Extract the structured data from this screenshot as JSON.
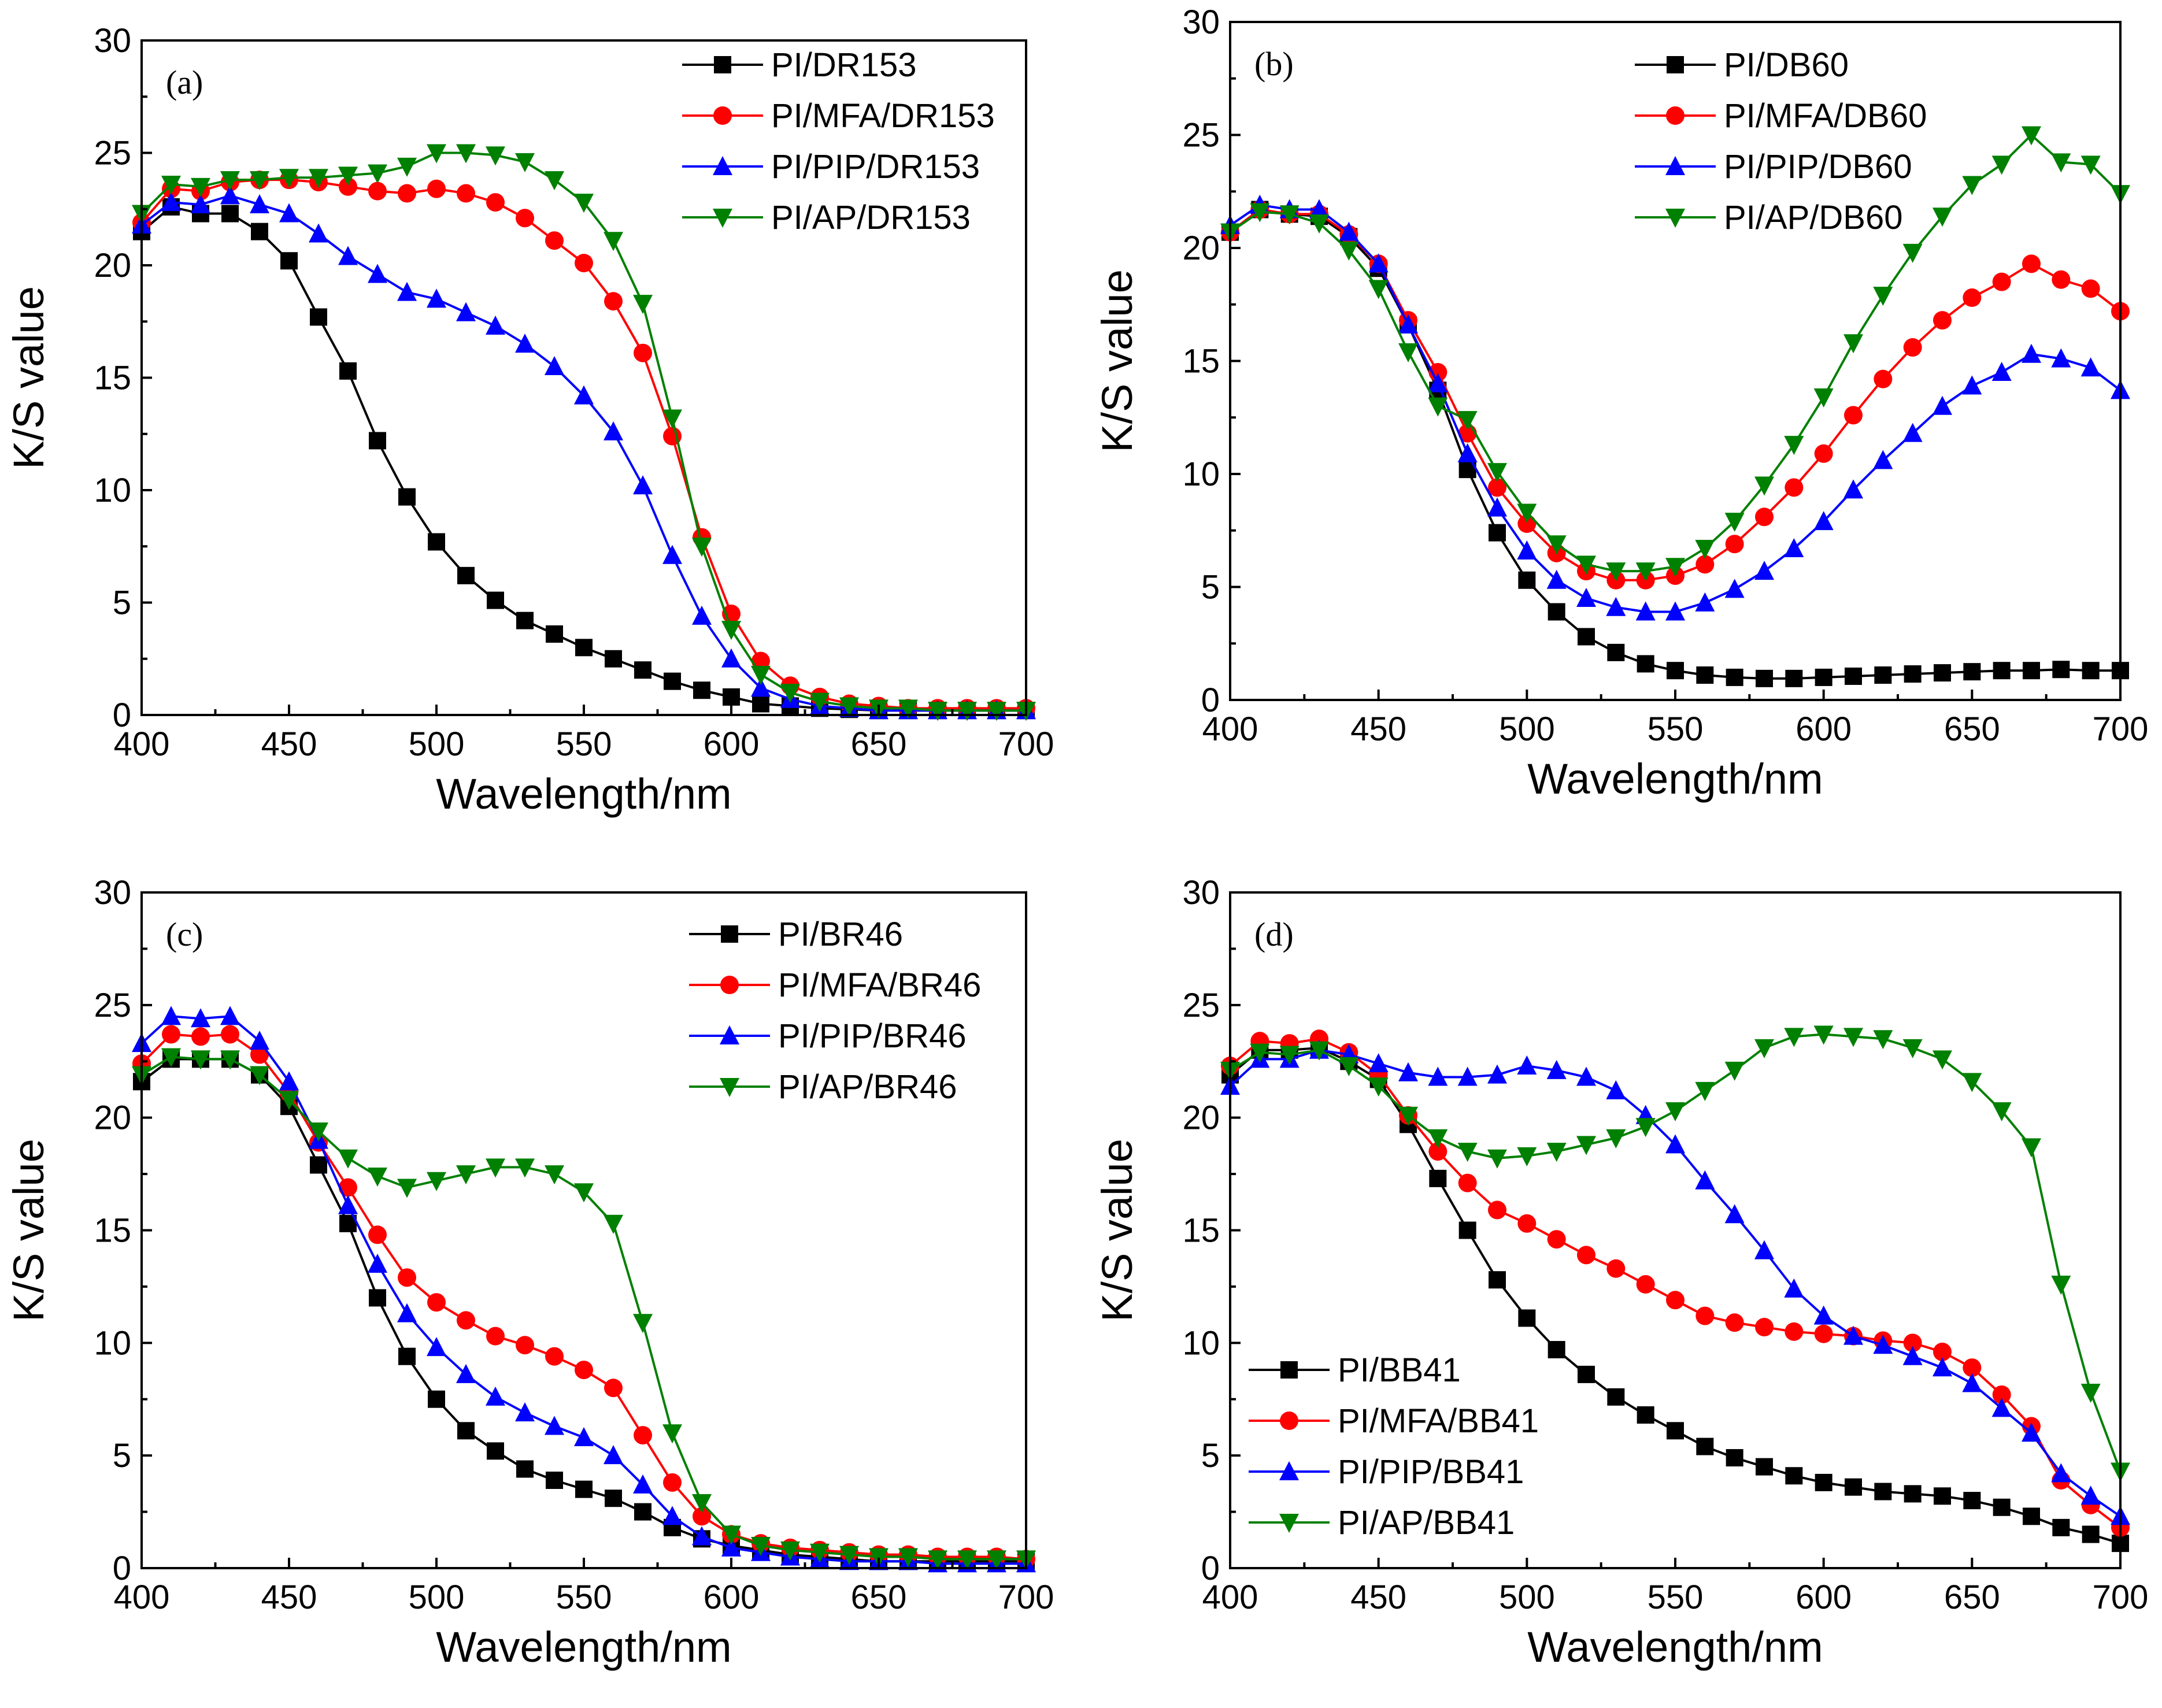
{
  "chart_data": [
    {
      "type": "line",
      "panel_label": "(a)",
      "xlabel": "Wavelength/nm",
      "ylabel": "K/S value",
      "xlim": [
        400,
        700
      ],
      "ylim": [
        0,
        30
      ],
      "xticks": [
        400,
        450,
        500,
        550,
        600,
        650,
        700
      ],
      "yticks": [
        0,
        5,
        10,
        15,
        20,
        25,
        30
      ],
      "legend_position": "top-right",
      "x": [
        400,
        410,
        420,
        430,
        440,
        450,
        460,
        470,
        480,
        490,
        500,
        510,
        520,
        530,
        540,
        550,
        560,
        570,
        580,
        590,
        600,
        610,
        620,
        630,
        640,
        650,
        660,
        670,
        680,
        690,
        700
      ],
      "series": [
        {
          "name": "PI/DR153",
          "color": "#000000",
          "marker": "square",
          "values": [
            21.5,
            22.6,
            22.3,
            22.3,
            21.5,
            20.2,
            17.7,
            15.3,
            12.2,
            9.7,
            7.7,
            6.2,
            5.1,
            4.2,
            3.6,
            3.0,
            2.5,
            2.0,
            1.5,
            1.1,
            0.8,
            0.5,
            0.4,
            0.3,
            0.25,
            0.2,
            0.2,
            0.2,
            0.2,
            0.2,
            0.2
          ]
        },
        {
          "name": "PI/MFA/DR153",
          "color": "#ff0000",
          "marker": "circle",
          "values": [
            21.9,
            23.4,
            23.3,
            23.7,
            23.8,
            23.8,
            23.7,
            23.5,
            23.3,
            23.2,
            23.4,
            23.2,
            22.8,
            22.1,
            21.1,
            20.1,
            18.4,
            16.1,
            12.4,
            7.9,
            4.5,
            2.4,
            1.3,
            0.8,
            0.5,
            0.4,
            0.3,
            0.3,
            0.3,
            0.3,
            0.3
          ]
        },
        {
          "name": "PI/PIP/DR153",
          "color": "#0000ff",
          "marker": "triangle-up",
          "values": [
            21.8,
            22.8,
            22.7,
            23.1,
            22.7,
            22.3,
            21.4,
            20.4,
            19.6,
            18.8,
            18.5,
            17.9,
            17.3,
            16.5,
            15.5,
            14.2,
            12.6,
            10.2,
            7.1,
            4.4,
            2.5,
            1.2,
            0.7,
            0.4,
            0.3,
            0.2,
            0.2,
            0.2,
            0.2,
            0.2,
            0.2
          ]
        },
        {
          "name": "PI/AP/DR153",
          "color": "#008000",
          "marker": "triangle-down",
          "values": [
            22.3,
            23.6,
            23.5,
            23.8,
            23.8,
            23.9,
            23.9,
            24.0,
            24.1,
            24.4,
            25.0,
            25.0,
            24.9,
            24.6,
            23.8,
            22.8,
            21.1,
            18.3,
            13.2,
            7.5,
            3.8,
            1.8,
            1.0,
            0.6,
            0.4,
            0.3,
            0.3,
            0.2,
            0.2,
            0.2,
            0.2
          ]
        }
      ]
    },
    {
      "type": "line",
      "panel_label": "(b)",
      "xlabel": "Wavelength/nm",
      "ylabel": "K/S value",
      "xlim": [
        400,
        700
      ],
      "ylim": [
        0,
        30
      ],
      "xticks": [
        400,
        450,
        500,
        550,
        600,
        650,
        700
      ],
      "yticks": [
        0,
        5,
        10,
        15,
        20,
        25,
        30
      ],
      "legend_position": "top-center",
      "x": [
        400,
        410,
        420,
        430,
        440,
        450,
        460,
        470,
        480,
        490,
        500,
        510,
        520,
        530,
        540,
        550,
        560,
        570,
        580,
        590,
        600,
        610,
        620,
        630,
        640,
        650,
        660,
        670,
        680,
        690,
        700
      ],
      "series": [
        {
          "name": "PI/DB60",
          "color": "#000000",
          "marker": "square",
          "values": [
            20.7,
            21.7,
            21.5,
            21.4,
            20.5,
            19.1,
            16.6,
            13.7,
            10.2,
            7.4,
            5.3,
            3.9,
            2.8,
            2.1,
            1.6,
            1.3,
            1.1,
            1.0,
            0.95,
            0.95,
            1.0,
            1.05,
            1.1,
            1.15,
            1.2,
            1.25,
            1.3,
            1.3,
            1.35,
            1.3,
            1.3
          ]
        },
        {
          "name": "PI/MFA/DB60",
          "color": "#ff0000",
          "marker": "circle",
          "values": [
            20.7,
            21.7,
            21.5,
            21.5,
            20.6,
            19.3,
            16.8,
            14.5,
            11.8,
            9.4,
            7.8,
            6.5,
            5.7,
            5.3,
            5.3,
            5.5,
            6.0,
            6.9,
            8.1,
            9.4,
            10.9,
            12.6,
            14.2,
            15.6,
            16.8,
            17.8,
            18.5,
            19.3,
            18.6,
            18.2,
            17.2
          ]
        },
        {
          "name": "PI/PIP/DB60",
          "color": "#0000ff",
          "marker": "triangle-up",
          "values": [
            21.0,
            21.9,
            21.7,
            21.7,
            20.7,
            19.3,
            16.6,
            14.0,
            10.9,
            8.5,
            6.6,
            5.3,
            4.5,
            4.1,
            3.9,
            3.9,
            4.3,
            4.9,
            5.7,
            6.7,
            7.9,
            9.3,
            10.6,
            11.8,
            13.0,
            13.9,
            14.5,
            15.3,
            15.1,
            14.7,
            13.7
          ]
        },
        {
          "name": "PI/AP/DB60",
          "color": "#008000",
          "marker": "triangle-down",
          "values": [
            20.7,
            21.6,
            21.5,
            21.1,
            19.9,
            18.2,
            15.4,
            13.0,
            12.4,
            10.1,
            8.3,
            6.9,
            6.0,
            5.7,
            5.7,
            5.9,
            6.7,
            7.9,
            9.5,
            11.3,
            13.4,
            15.8,
            17.9,
            19.8,
            21.4,
            22.8,
            23.7,
            25.0,
            23.8,
            23.7,
            22.4
          ]
        }
      ]
    },
    {
      "type": "line",
      "panel_label": "(c)",
      "xlabel": "Wavelength/nm",
      "ylabel": "K/S value",
      "xlim": [
        400,
        700
      ],
      "ylim": [
        0,
        30
      ],
      "xticks": [
        400,
        450,
        500,
        550,
        600,
        650,
        700
      ],
      "yticks": [
        0,
        5,
        10,
        15,
        20,
        25,
        30
      ],
      "legend_position": "top-right",
      "x": [
        400,
        410,
        420,
        430,
        440,
        450,
        460,
        470,
        480,
        490,
        500,
        510,
        520,
        530,
        540,
        550,
        560,
        570,
        580,
        590,
        600,
        610,
        620,
        630,
        640,
        650,
        660,
        670,
        680,
        690,
        700
      ],
      "series": [
        {
          "name": "PI/BR46",
          "color": "#000000",
          "marker": "square",
          "values": [
            21.6,
            22.6,
            22.6,
            22.6,
            21.9,
            20.5,
            17.9,
            15.3,
            12.0,
            9.4,
            7.5,
            6.1,
            5.2,
            4.4,
            3.9,
            3.5,
            3.1,
            2.5,
            1.8,
            1.3,
            1.0,
            0.8,
            0.6,
            0.5,
            0.4,
            0.3,
            0.3,
            0.3,
            0.3,
            0.3,
            0.3
          ]
        },
        {
          "name": "PI/MFA/BR46",
          "color": "#ff0000",
          "marker": "circle",
          "values": [
            22.4,
            23.7,
            23.6,
            23.7,
            22.8,
            21.1,
            18.9,
            16.9,
            14.8,
            12.9,
            11.8,
            11.0,
            10.3,
            9.9,
            9.4,
            8.8,
            8.0,
            5.9,
            3.8,
            2.3,
            1.5,
            1.1,
            0.9,
            0.8,
            0.7,
            0.6,
            0.6,
            0.5,
            0.5,
            0.5,
            0.4
          ]
        },
        {
          "name": "PI/PIP/BR46",
          "color": "#0000ff",
          "marker": "triangle-up",
          "values": [
            23.3,
            24.5,
            24.4,
            24.5,
            23.4,
            21.6,
            19.0,
            16.1,
            13.5,
            11.3,
            9.8,
            8.6,
            7.6,
            6.9,
            6.3,
            5.8,
            5.0,
            3.7,
            2.3,
            1.4,
            0.9,
            0.7,
            0.5,
            0.4,
            0.3,
            0.3,
            0.3,
            0.2,
            0.2,
            0.2,
            0.2
          ]
        },
        {
          "name": "PI/AP/BR46",
          "color": "#008000",
          "marker": "triangle-down",
          "values": [
            21.9,
            22.7,
            22.6,
            22.6,
            21.9,
            20.8,
            19.4,
            18.2,
            17.4,
            16.9,
            17.2,
            17.5,
            17.8,
            17.8,
            17.5,
            16.7,
            15.3,
            10.9,
            6.0,
            2.9,
            1.5,
            1.0,
            0.8,
            0.7,
            0.6,
            0.5,
            0.5,
            0.4,
            0.4,
            0.4,
            0.4
          ]
        }
      ]
    },
    {
      "type": "line",
      "panel_label": "(d)",
      "xlabel": "Wavelength/nm",
      "ylabel": "K/S value",
      "xlim": [
        400,
        700
      ],
      "ylim": [
        0,
        30
      ],
      "xticks": [
        400,
        450,
        500,
        550,
        600,
        650,
        700
      ],
      "yticks": [
        0,
        5,
        10,
        15,
        20,
        25,
        30
      ],
      "legend_position": "bottom-left",
      "x": [
        400,
        410,
        420,
        430,
        440,
        450,
        460,
        470,
        480,
        490,
        500,
        510,
        520,
        530,
        540,
        550,
        560,
        570,
        580,
        590,
        600,
        610,
        620,
        630,
        640,
        650,
        660,
        670,
        680,
        690,
        700
      ],
      "series": [
        {
          "name": "PI/BB41",
          "color": "#000000",
          "marker": "square",
          "values": [
            21.9,
            23.0,
            23.0,
            23.1,
            22.5,
            21.7,
            19.7,
            17.3,
            15.0,
            12.8,
            11.1,
            9.7,
            8.6,
            7.6,
            6.8,
            6.1,
            5.4,
            4.9,
            4.5,
            4.1,
            3.8,
            3.6,
            3.4,
            3.3,
            3.2,
            3.0,
            2.7,
            2.3,
            1.8,
            1.5,
            1.1
          ]
        },
        {
          "name": "PI/MFA/BB41",
          "color": "#ff0000",
          "marker": "circle",
          "values": [
            22.3,
            23.4,
            23.3,
            23.5,
            22.9,
            21.9,
            20.1,
            18.5,
            17.1,
            15.9,
            15.3,
            14.6,
            13.9,
            13.3,
            12.6,
            11.9,
            11.2,
            10.9,
            10.7,
            10.5,
            10.4,
            10.3,
            10.1,
            10.0,
            9.6,
            8.9,
            7.7,
            6.3,
            3.9,
            2.8,
            1.8
          ]
        },
        {
          "name": "PI/PIP/BB41",
          "color": "#0000ff",
          "marker": "triangle-up",
          "values": [
            21.4,
            22.6,
            22.6,
            23.0,
            22.8,
            22.4,
            22.0,
            21.8,
            21.8,
            21.9,
            22.3,
            22.1,
            21.8,
            21.2,
            20.1,
            18.8,
            17.2,
            15.7,
            14.1,
            12.4,
            11.2,
            10.3,
            9.9,
            9.4,
            8.9,
            8.2,
            7.1,
            6.0,
            4.2,
            3.2,
            2.3
          ]
        },
        {
          "name": "PI/AP/BB41",
          "color": "#008000",
          "marker": "triangle-down",
          "values": [
            22.1,
            22.9,
            22.8,
            23.0,
            22.3,
            21.4,
            20.1,
            19.1,
            18.5,
            18.2,
            18.3,
            18.5,
            18.8,
            19.1,
            19.6,
            20.3,
            21.2,
            22.1,
            23.1,
            23.6,
            23.7,
            23.6,
            23.5,
            23.1,
            22.6,
            21.6,
            20.3,
            18.7,
            12.6,
            7.8,
            4.3
          ]
        }
      ]
    }
  ]
}
